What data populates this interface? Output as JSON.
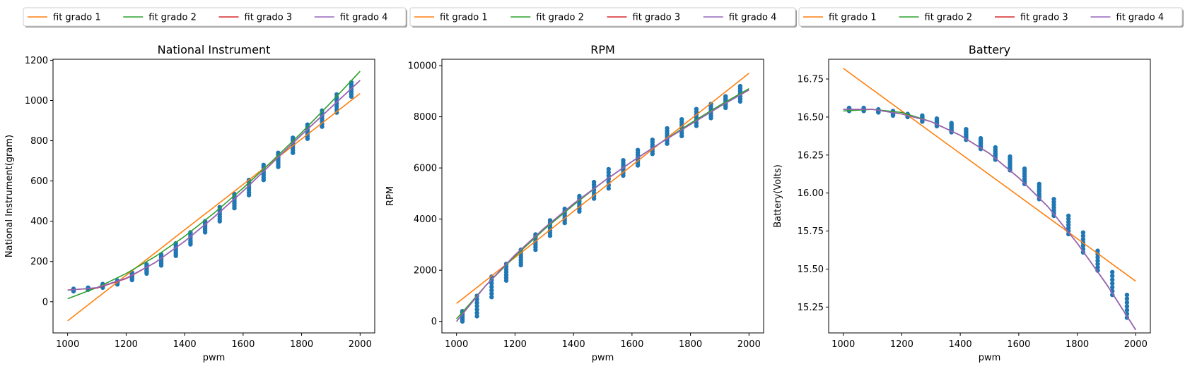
{
  "chart_data": [
    {
      "type": "scatter+line",
      "title": "National Instrument",
      "xlabel": "pwm",
      "ylabel": "National Instrument(gram)",
      "xlim": [
        950,
        2050
      ],
      "ylim": [
        -155,
        1205
      ],
      "xticks": [
        1000,
        1200,
        1400,
        1600,
        1800,
        2000
      ],
      "yticks": [
        0,
        200,
        400,
        600,
        800,
        1000,
        1200
      ],
      "legend": [
        "fit grado 1",
        "fit grado 2",
        "fit grado 3",
        "fit grado 4"
      ],
      "scatter": {
        "color": "#1f77b4",
        "x": [
          1020,
          1070,
          1120,
          1170,
          1220,
          1270,
          1320,
          1370,
          1420,
          1470,
          1520,
          1570,
          1620,
          1670,
          1720,
          1770,
          1820,
          1870,
          1920,
          1970
        ],
        "y_min": [
          52,
          60,
          70,
          86,
          108,
          140,
          180,
          228,
          285,
          345,
          400,
          465,
          530,
          605,
          670,
          740,
          810,
          870,
          940,
          1020
        ],
        "y_max": [
          64,
          70,
          88,
          105,
          145,
          185,
          235,
          290,
          345,
          400,
          470,
          535,
          605,
          680,
          740,
          815,
          880,
          950,
          1030,
          1090
        ]
      },
      "fits": [
        {
          "name": "fit grado 1",
          "color": "#ff7f0e",
          "x": [
            1000,
            1100,
            1200,
            1300,
            1400,
            1500,
            1600,
            1700,
            1800,
            1900,
            2000
          ],
          "y": [
            -95,
            18,
            131,
            244,
            357,
            470,
            583,
            696,
            809,
            922,
            1035
          ]
        },
        {
          "name": "fit grado 2",
          "color": "#2ca02c",
          "x": [
            1000,
            1100,
            1200,
            1300,
            1400,
            1500,
            1600,
            1700,
            1800,
            1900,
            2000
          ],
          "y": [
            15,
            70,
            140,
            225,
            325,
            440,
            565,
            700,
            840,
            990,
            1145
          ]
        },
        {
          "name": "fit grado 3",
          "color": "#d62728",
          "x": [
            1000,
            1100,
            1200,
            1300,
            1400,
            1500,
            1600,
            1700,
            1800,
            1900,
            2000
          ],
          "y": [
            58,
            68,
            115,
            195,
            300,
            420,
            550,
            690,
            830,
            965,
            1100
          ]
        },
        {
          "name": "fit grado 4",
          "color": "#9467bd",
          "x": [
            1000,
            1100,
            1200,
            1300,
            1400,
            1500,
            1600,
            1700,
            1800,
            1900,
            2000
          ],
          "y": [
            57,
            70,
            117,
            196,
            300,
            420,
            550,
            690,
            830,
            965,
            1100
          ]
        }
      ]
    },
    {
      "type": "scatter+line",
      "title": "RPM",
      "xlabel": "pwm",
      "ylabel": "RPM",
      "xlim": [
        950,
        2050
      ],
      "ylim": [
        -450,
        10250
      ],
      "xticks": [
        1000,
        1200,
        1400,
        1600,
        1800,
        2000
      ],
      "yticks": [
        0,
        2000,
        4000,
        6000,
        8000,
        10000
      ],
      "legend": [
        "fit grado 1",
        "fit grado 2",
        "fit grado 3",
        "fit grado 4"
      ],
      "scatter": {
        "color": "#1f77b4",
        "x": [
          1020,
          1070,
          1120,
          1170,
          1220,
          1270,
          1320,
          1370,
          1420,
          1470,
          1520,
          1570,
          1620,
          1670,
          1720,
          1770,
          1820,
          1870,
          1920,
          1970
        ],
        "y_min": [
          0,
          200,
          950,
          1600,
          2200,
          2800,
          3350,
          3850,
          4300,
          4800,
          5200,
          5700,
          6100,
          6550,
          6950,
          7250,
          7650,
          7950,
          8350,
          8600
        ],
        "y_max": [
          400,
          1000,
          1750,
          2250,
          2800,
          3400,
          3950,
          4400,
          4900,
          5450,
          5950,
          6300,
          6700,
          7100,
          7550,
          7900,
          8300,
          8500,
          8800,
          9200
        ]
      },
      "fits": [
        {
          "name": "fit grado 1",
          "color": "#ff7f0e",
          "x": [
            1000,
            1100,
            1200,
            1300,
            1400,
            1500,
            1600,
            1700,
            1800,
            1900,
            2000
          ],
          "y": [
            700,
            1600,
            2500,
            3400,
            4300,
            5200,
            6100,
            7000,
            7900,
            8800,
            9700
          ]
        },
        {
          "name": "fit grado 2",
          "color": "#2ca02c",
          "x": [
            1000,
            1100,
            1200,
            1300,
            1400,
            1500,
            1600,
            1700,
            1800,
            1900,
            2000
          ],
          "y": [
            100,
            1400,
            2550,
            3600,
            4550,
            5450,
            6250,
            7000,
            7750,
            8450,
            9100
          ]
        },
        {
          "name": "fit grado 3",
          "color": "#d62728",
          "x": [
            1000,
            1100,
            1200,
            1300,
            1400,
            1500,
            1600,
            1700,
            1800,
            1900,
            2000
          ],
          "y": [
            0,
            1400,
            2600,
            3650,
            4600,
            5450,
            6250,
            7000,
            7700,
            8400,
            9050
          ]
        },
        {
          "name": "fit grado 4",
          "color": "#9467bd",
          "x": [
            1000,
            1100,
            1200,
            1300,
            1400,
            1500,
            1600,
            1700,
            1800,
            1900,
            2000
          ],
          "y": [
            0,
            1400,
            2600,
            3650,
            4600,
            5450,
            6250,
            7000,
            7700,
            8400,
            9050
          ]
        }
      ]
    },
    {
      "type": "scatter+line",
      "title": "Battery",
      "xlabel": "pwm",
      "ylabel": "Battery(Volts)",
      "xlim": [
        950,
        2050
      ],
      "ylim": [
        15.08,
        16.88
      ],
      "xticks": [
        1000,
        1200,
        1400,
        1600,
        1800,
        2000
      ],
      "yticks": [
        15.25,
        15.5,
        15.75,
        16.0,
        16.25,
        16.5,
        16.75
      ],
      "legend": [
        "fit grado 1",
        "fit grado 2",
        "fit grado 3",
        "fit grado 4"
      ],
      "scatter": {
        "color": "#1f77b4",
        "x": [
          1020,
          1070,
          1120,
          1170,
          1220,
          1270,
          1320,
          1370,
          1420,
          1470,
          1520,
          1570,
          1620,
          1670,
          1720,
          1770,
          1820,
          1870,
          1920,
          1970
        ],
        "y_min": [
          16.54,
          16.54,
          16.53,
          16.51,
          16.5,
          16.47,
          16.44,
          16.4,
          16.35,
          16.29,
          16.22,
          16.15,
          16.06,
          15.96,
          15.85,
          15.73,
          15.61,
          15.49,
          15.33,
          15.18
        ],
        "y_max": [
          16.56,
          16.56,
          16.55,
          16.54,
          16.52,
          16.51,
          16.49,
          16.46,
          16.42,
          16.36,
          16.3,
          16.24,
          16.16,
          16.06,
          15.96,
          15.85,
          15.74,
          15.62,
          15.48,
          15.33
        ]
      },
      "fits": [
        {
          "name": "fit grado 1",
          "color": "#ff7f0e",
          "x": [
            1000,
            1100,
            1200,
            1300,
            1400,
            1500,
            1600,
            1700,
            1800,
            1900,
            2000
          ],
          "y": [
            16.82,
            16.68,
            16.54,
            16.4,
            16.26,
            16.12,
            15.98,
            15.84,
            15.7,
            15.56,
            15.42
          ]
        },
        {
          "name": "fit grado 2",
          "color": "#2ca02c",
          "x": [
            1000,
            1100,
            1200,
            1300,
            1400,
            1500,
            1600,
            1700,
            1800,
            1900,
            2000
          ],
          "y": [
            16.54,
            16.55,
            16.53,
            16.47,
            16.38,
            16.26,
            16.1,
            15.91,
            15.67,
            15.4,
            15.1
          ]
        },
        {
          "name": "fit grado 3",
          "color": "#d62728",
          "x": [
            1000,
            1100,
            1200,
            1300,
            1400,
            1500,
            1600,
            1700,
            1800,
            1900,
            2000
          ],
          "y": [
            16.55,
            16.55,
            16.52,
            16.47,
            16.38,
            16.26,
            16.1,
            15.91,
            15.67,
            15.4,
            15.1
          ]
        },
        {
          "name": "fit grado 4",
          "color": "#9467bd",
          "x": [
            1000,
            1100,
            1200,
            1300,
            1400,
            1500,
            1600,
            1700,
            1800,
            1900,
            2000
          ],
          "y": [
            16.55,
            16.55,
            16.52,
            16.47,
            16.38,
            16.26,
            16.1,
            15.91,
            15.67,
            15.4,
            15.1
          ]
        }
      ]
    }
  ]
}
